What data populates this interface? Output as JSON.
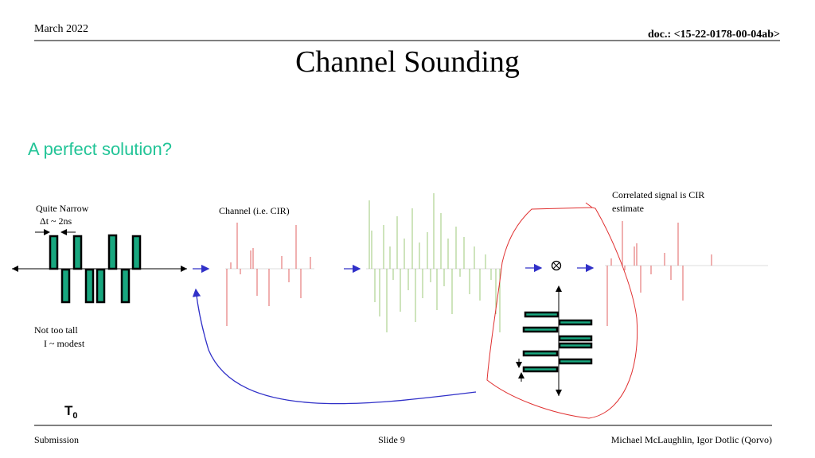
{
  "header": {
    "date": "March 2022",
    "doc": "doc.: <15-22-0178-00-04ab>"
  },
  "title": "Channel Sounding",
  "subtitle": "A perfect solution?",
  "labels": {
    "narrow": "Quite Narrow",
    "delta": "Δt ~ 2ns",
    "channel": "Channel (i.e. CIR)",
    "correlated_1": "Correlated signal is CIR",
    "correlated_2": "estimate",
    "tall": "Not too tall",
    "modest": "I ~ modest",
    "t_main": "T",
    "t_sub": "0"
  },
  "footer": {
    "left": "Submission",
    "center": "Slide 9",
    "right": "Michael McLaughlin, Igor Dotlic (Qorvo)"
  }
}
